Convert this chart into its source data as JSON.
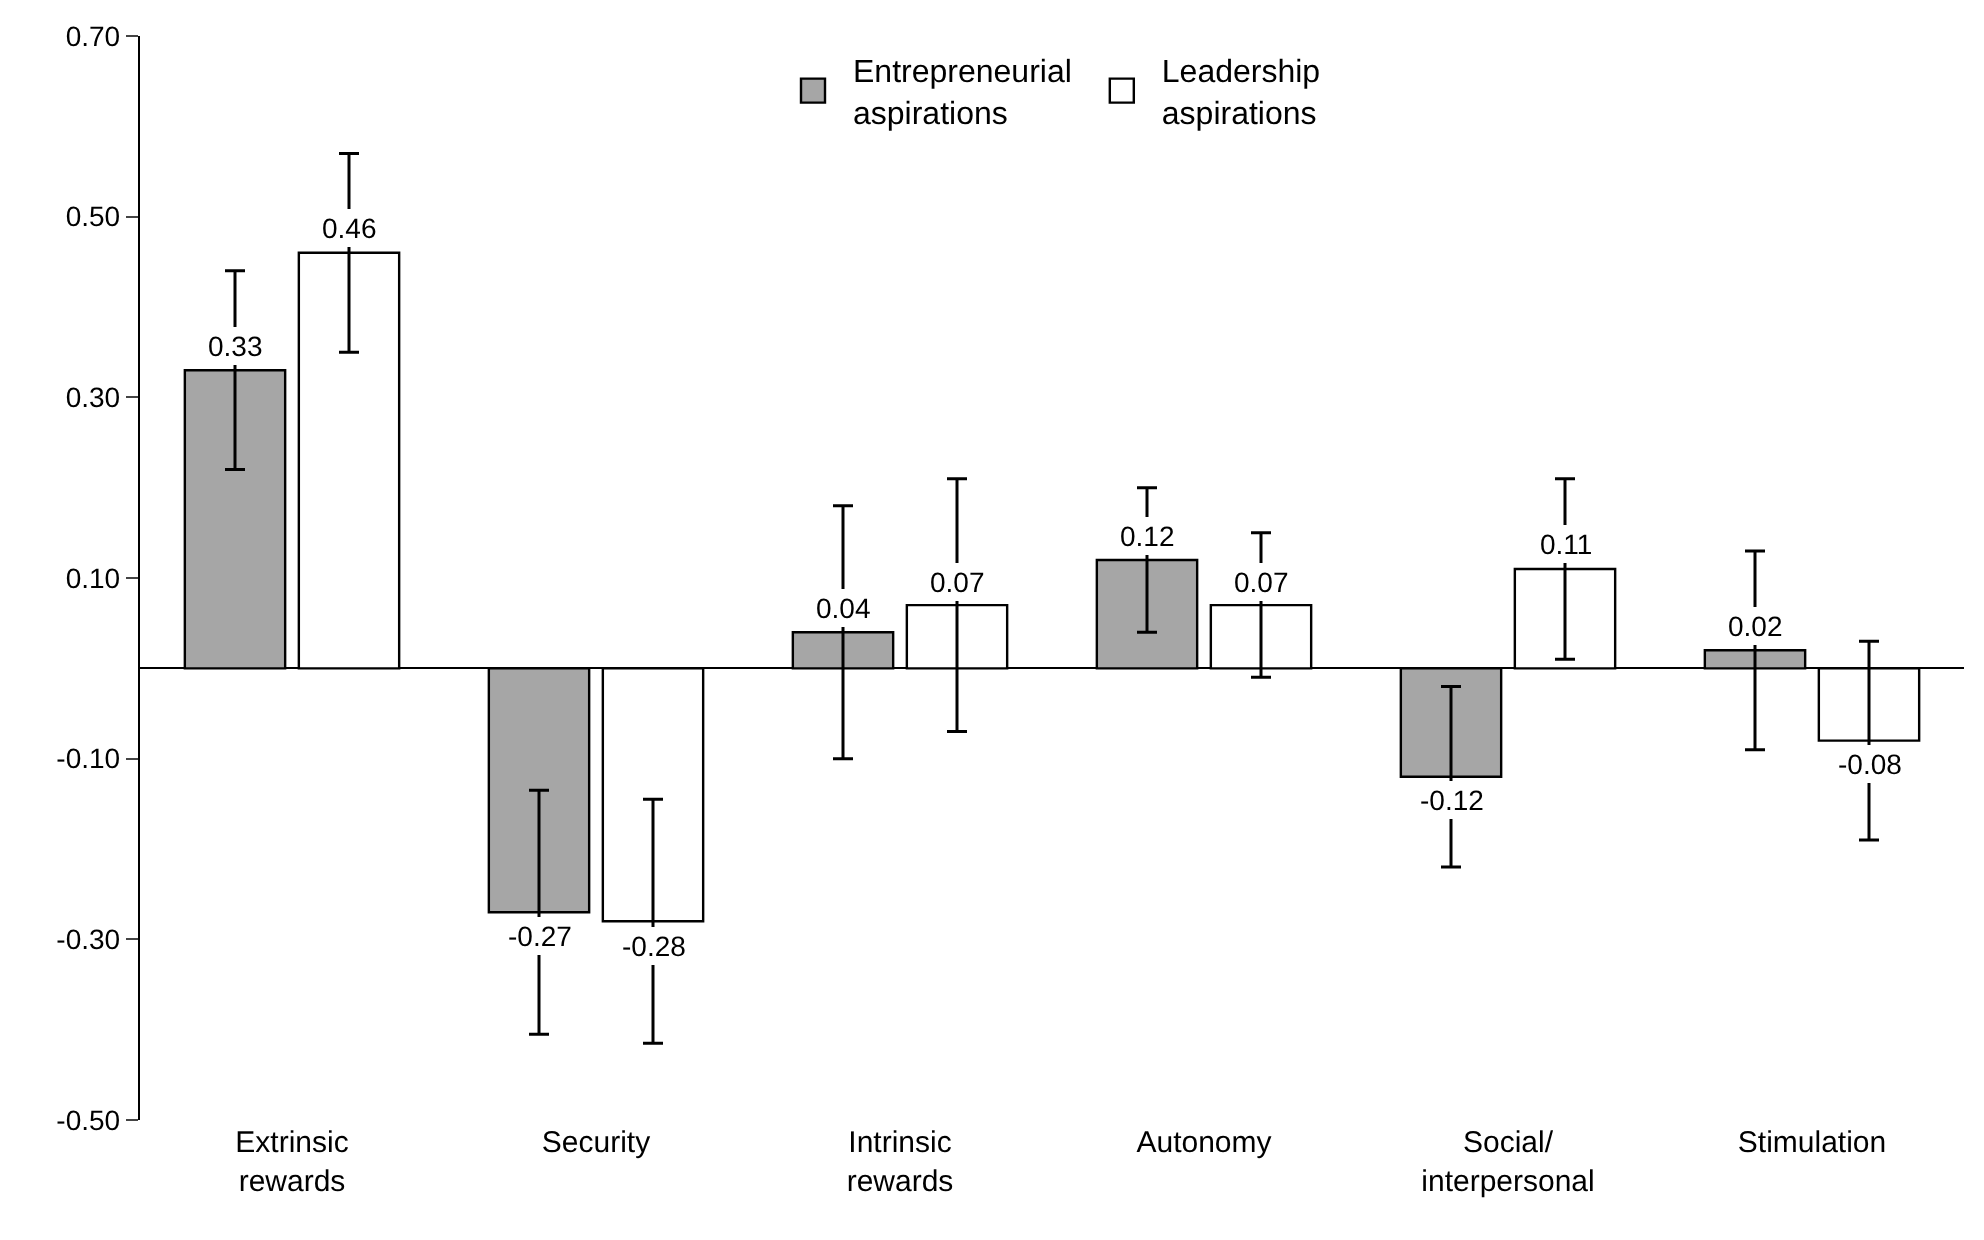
{
  "chart_data": {
    "type": "bar",
    "categories": [
      "Extrinsic\nrewards",
      "Security",
      "Intrinsic\nrewards",
      "Autonomy",
      "Social/\ninterpersonal",
      "Stimulation"
    ],
    "series": [
      {
        "name": "Entrepreneurial\naspirations",
        "color": "#a6a6a6",
        "values": [
          0.33,
          -0.27,
          0.04,
          0.12,
          -0.12,
          0.02
        ],
        "errors": [
          0.11,
          0.135,
          0.14,
          0.08,
          0.1,
          0.11
        ]
      },
      {
        "name": "Leadership\naspirations",
        "color": "#ffffff",
        "values": [
          0.46,
          -0.28,
          0.07,
          0.07,
          0.11,
          -0.08
        ],
        "errors": [
          0.11,
          0.135,
          0.14,
          0.08,
          0.1,
          0.11
        ]
      }
    ],
    "ylim": [
      -0.5,
      0.7
    ],
    "yticks": [
      {
        "value": -0.5,
        "label": "-0.50"
      },
      {
        "value": -0.3,
        "label": "-0.30"
      },
      {
        "value": -0.1,
        "label": "-0.10"
      },
      {
        "value": 0.1,
        "label": "0.10"
      },
      {
        "value": 0.3,
        "label": "0.30"
      },
      {
        "value": 0.5,
        "label": "0.50"
      },
      {
        "value": 0.7,
        "label": "0.70"
      }
    ],
    "data_labels": true,
    "legend": "top"
  }
}
